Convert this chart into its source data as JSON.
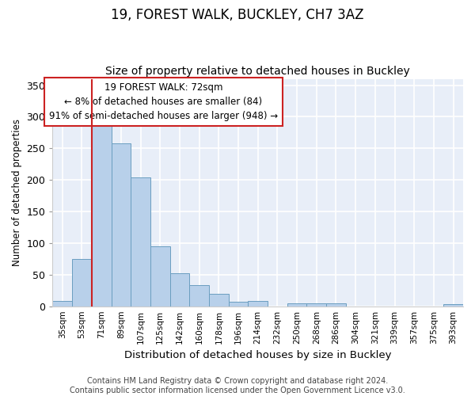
{
  "title1": "19, FOREST WALK, BUCKLEY, CH7 3AZ",
  "title2": "Size of property relative to detached houses in Buckley",
  "xlabel": "Distribution of detached houses by size in Buckley",
  "ylabel": "Number of detached properties",
  "annotation_line1": "19 FOREST WALK: 72sqm",
  "annotation_line2": "← 8% of detached houses are smaller (84)",
  "annotation_line3": "91% of semi-detached houses are larger (948) →",
  "footer_line1": "Contains HM Land Registry data © Crown copyright and database right 2024.",
  "footer_line2": "Contains public sector information licensed under the Open Government Licence v3.0.",
  "categories": [
    "35sqm",
    "53sqm",
    "71sqm",
    "89sqm",
    "107sqm",
    "125sqm",
    "142sqm",
    "160sqm",
    "178sqm",
    "196sqm",
    "214sqm",
    "232sqm",
    "250sqm",
    "268sqm",
    "286sqm",
    "304sqm",
    "321sqm",
    "339sqm",
    "357sqm",
    "375sqm",
    "393sqm"
  ],
  "values": [
    8,
    75,
    286,
    258,
    204,
    95,
    52,
    33,
    20,
    7,
    8,
    0,
    5,
    4,
    4,
    0,
    0,
    0,
    0,
    0,
    3
  ],
  "bar_color": "#b8d0ea",
  "bar_edge_color": "#6a9ec0",
  "ylim": [
    0,
    360
  ],
  "yticks": [
    0,
    50,
    100,
    150,
    200,
    250,
    300,
    350
  ],
  "bg_color": "#ffffff",
  "plot_bg_color": "#e8eef8",
  "grid_color": "#ffffff",
  "annotation_box_facecolor": "#ffffff",
  "annotation_border_color": "#cc2222",
  "red_line_color": "#cc2222",
  "title_fontsize": 12,
  "subtitle_fontsize": 10,
  "footer_fontsize": 7
}
